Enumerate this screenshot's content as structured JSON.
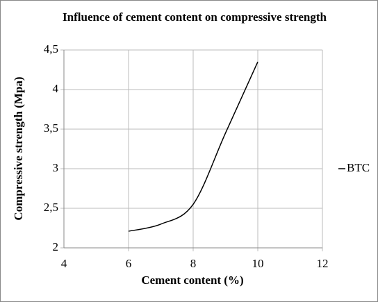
{
  "chart_data": {
    "type": "line",
    "title": "Influence of cement content on compressive strength",
    "x_label": "Cement content (%)",
    "y_label": "Compressive strength (Mpa)",
    "x": [
      6,
      7,
      8,
      9,
      10
    ],
    "series": [
      {
        "name": "BTC",
        "color": "#000000",
        "values": [
          2.21,
          2.3,
          2.55,
          3.45,
          4.35
        ]
      }
    ],
    "xlim": [
      4,
      12
    ],
    "xticks": [
      4,
      6,
      8,
      10,
      12
    ],
    "ylim": [
      2,
      4.5
    ],
    "yticks": [
      2,
      {
        "value": 2.5,
        "label": "2,5"
      },
      3,
      {
        "value": 3.5,
        "label": "3,5"
      },
      4,
      {
        "value": 4.5,
        "label": "4,5"
      }
    ],
    "grid": true,
    "smooth": true,
    "legend": "right"
  }
}
